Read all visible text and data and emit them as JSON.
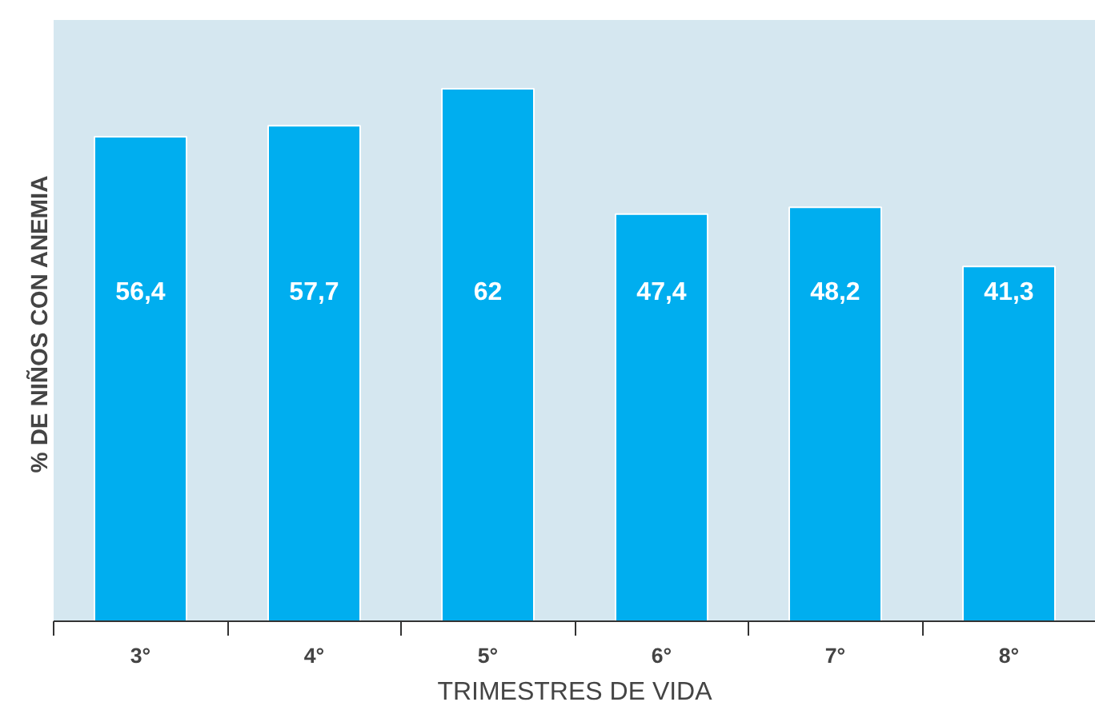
{
  "chart_data": {
    "type": "bar",
    "xlabel": "TRIMESTRES DE VIDA",
    "ylabel": "%  DE NIÑOS CON ANEMIA",
    "categories": [
      "3°",
      "4°",
      "5°",
      "6°",
      "7°",
      "8°"
    ],
    "values": [
      56.4,
      57.7,
      62,
      47.4,
      48.2,
      41.3
    ],
    "value_labels": [
      "56,4",
      "57,7",
      "62",
      "47,4",
      "48,2",
      "41,3"
    ],
    "color": "#00aeef",
    "ylim": [
      0,
      70
    ],
    "grid": false
  }
}
